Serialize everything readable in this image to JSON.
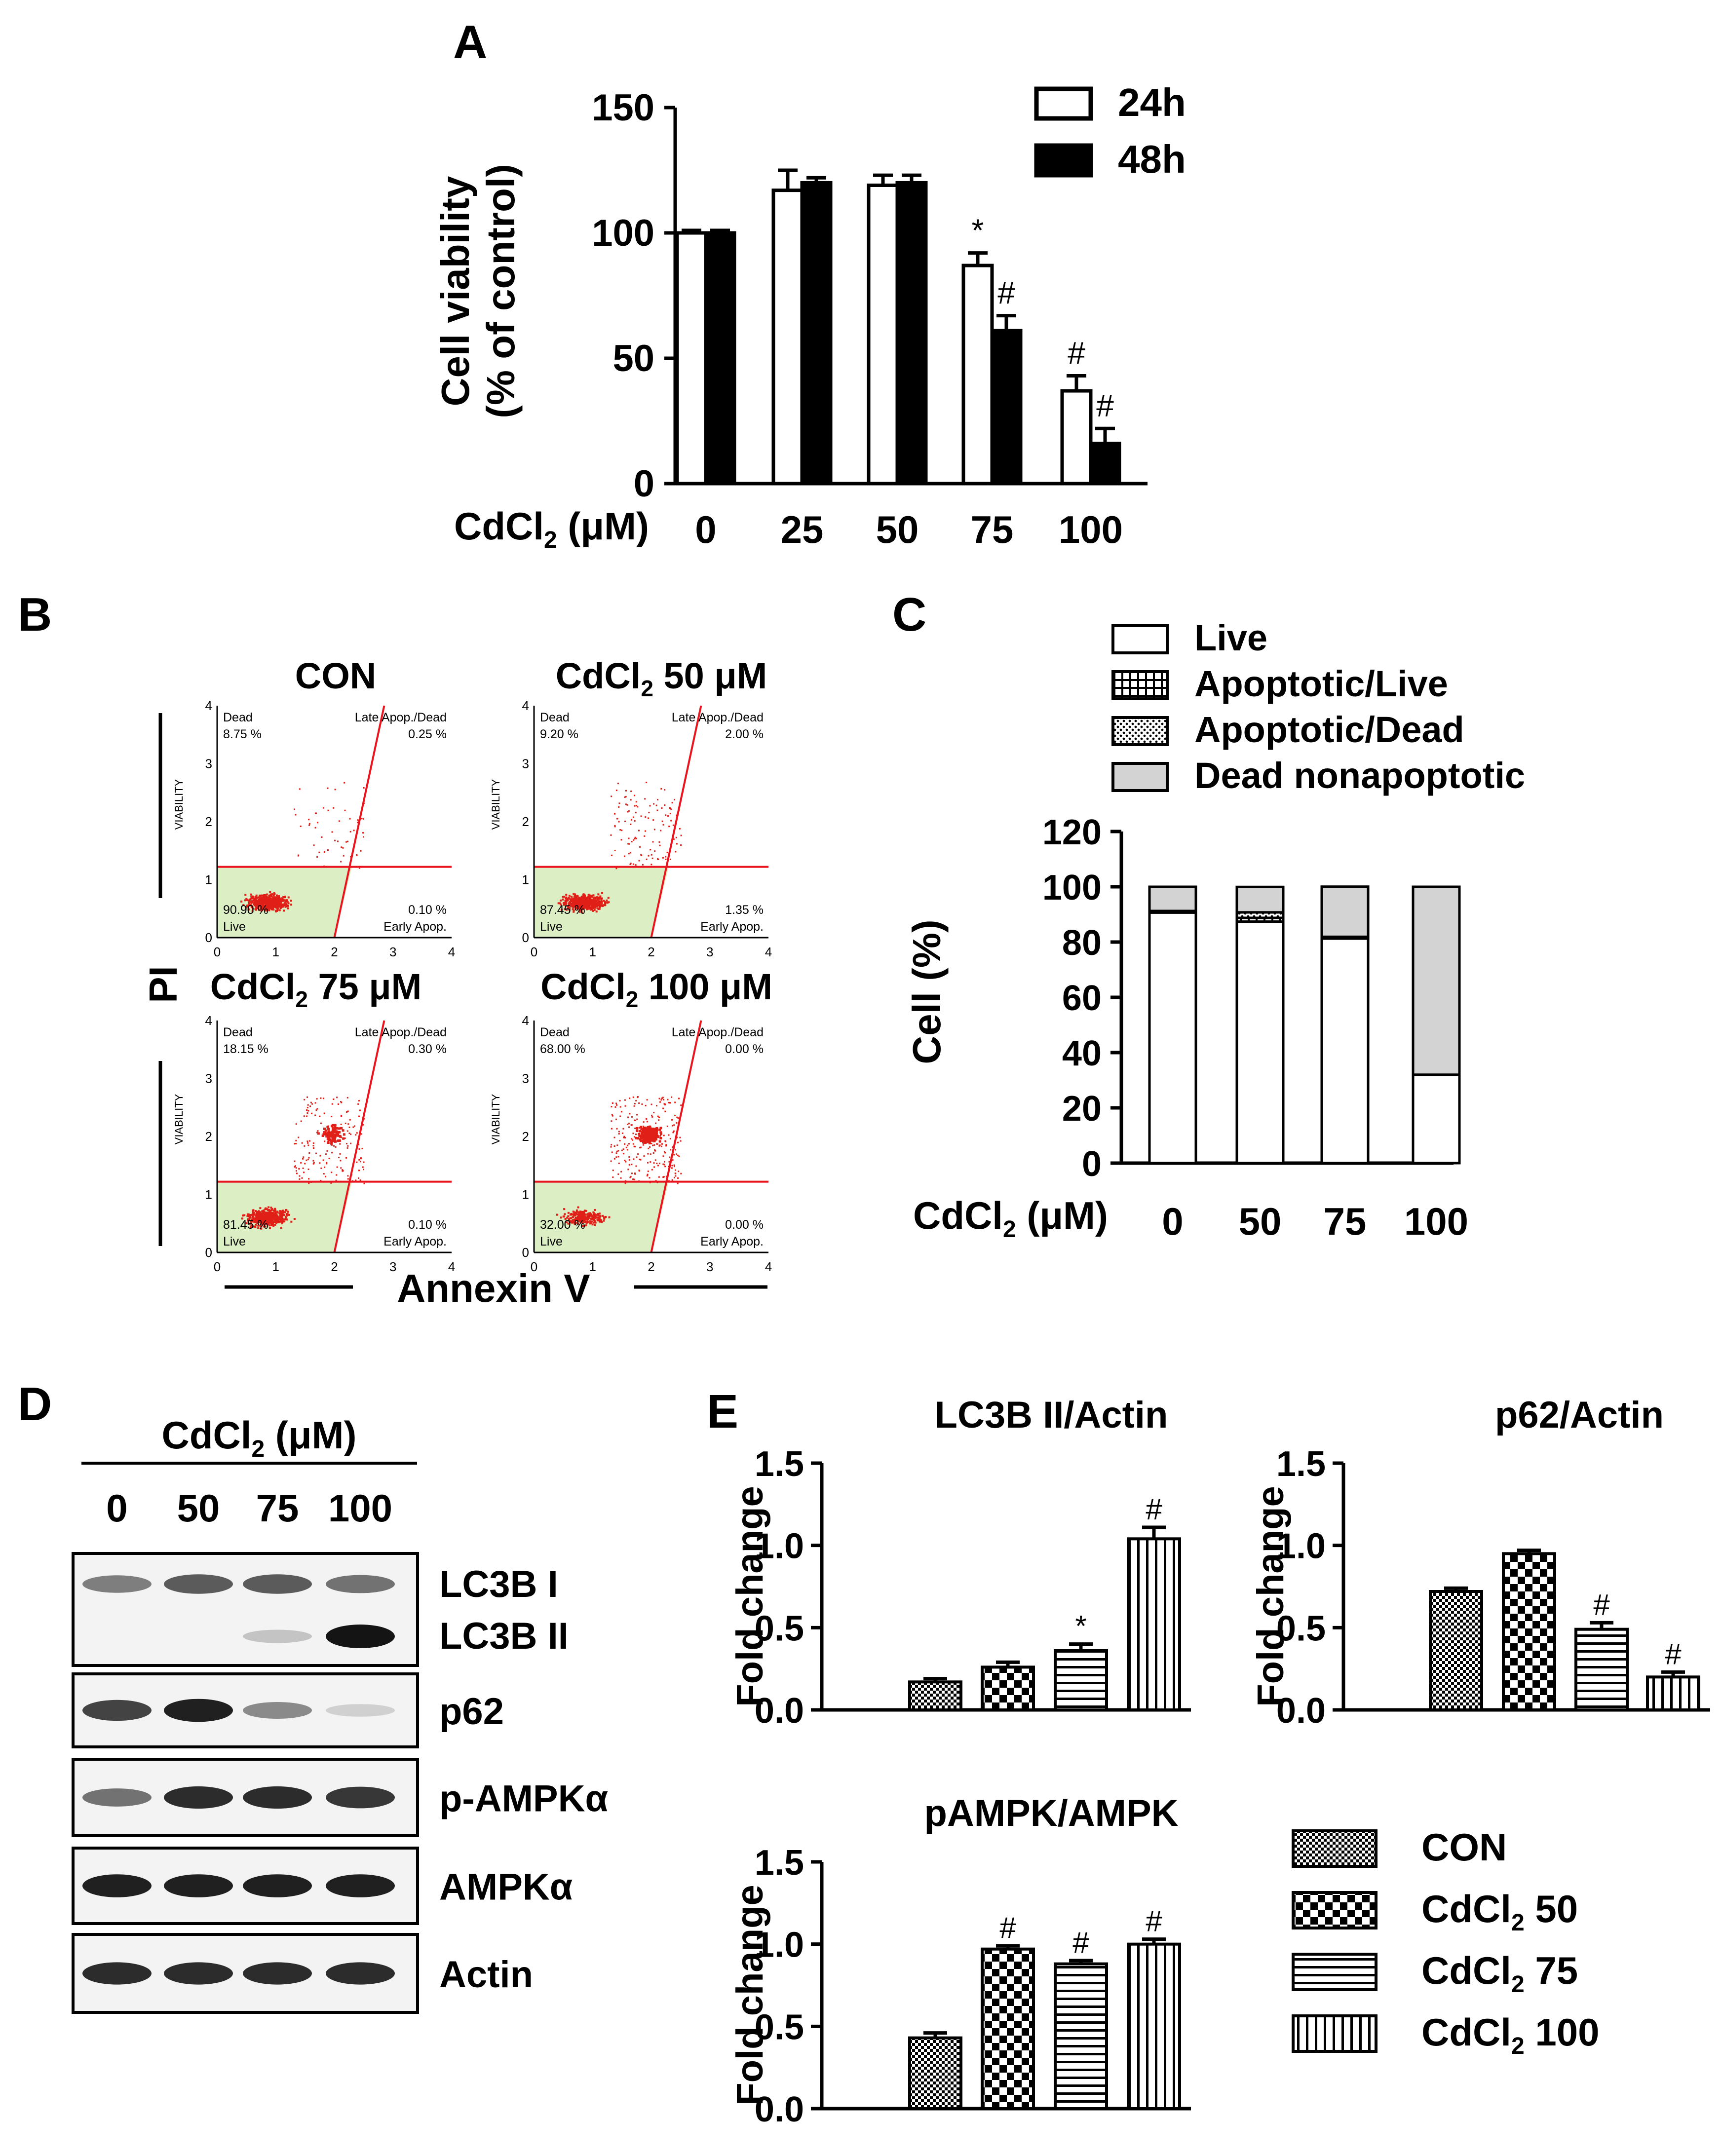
{
  "panel_labels": {
    "a": "A",
    "b": "B",
    "c": "C",
    "d": "D",
    "e": "E"
  },
  "colors": {
    "ink": "#000000",
    "flow_gate": "#e8141e",
    "flow_dot": "#e02018",
    "flow_live_region": "#dcefc4",
    "dead_nonapoptotic": "#d3d3d3"
  },
  "chart_data": [
    {
      "id": "A",
      "type": "bar",
      "title": "",
      "ylabel": "Cell viability\n(% of control)",
      "xlabel": "CdCl2 (μM)",
      "categories": [
        "0",
        "25",
        "50",
        "75",
        "100"
      ],
      "series": [
        {
          "name": "24h",
          "fill": "white",
          "values": [
            100,
            117,
            119,
            87,
            37
          ],
          "errors": [
            1,
            8,
            4,
            5,
            6
          ]
        },
        {
          "name": "48h",
          "fill": "black",
          "values": [
            100,
            120,
            120,
            61,
            16
          ],
          "errors": [
            1,
            2,
            3,
            6,
            6
          ]
        }
      ],
      "annotations": [
        {
          "category": "75",
          "series": "24h",
          "text": "*"
        },
        {
          "category": "75",
          "series": "48h",
          "text": "#"
        },
        {
          "category": "100",
          "series": "24h",
          "text": "#"
        },
        {
          "category": "100",
          "series": "48h",
          "text": "#"
        }
      ],
      "ylim": [
        0,
        150
      ],
      "yticks": [
        "0",
        "50",
        "100",
        "150"
      ],
      "legend": "top-right"
    },
    {
      "id": "C",
      "type": "bar",
      "stacked": true,
      "ylabel": "Cell (%)",
      "xlabel": "CdCl2 (μM)",
      "categories": [
        "0",
        "50",
        "75",
        "100"
      ],
      "series": [
        {
          "name": "Live",
          "values": [
            90.9,
            87.4,
            81.5,
            32.0
          ]
        },
        {
          "name": "Apoptotic/Live",
          "values": [
            0.1,
            1.35,
            0.1,
            0.0
          ]
        },
        {
          "name": "Apoptotic/Dead",
          "values": [
            0.25,
            2.0,
            0.3,
            0.0
          ]
        },
        {
          "name": "Dead nonapoptotic",
          "values": [
            8.75,
            9.2,
            18.15,
            68.0
          ]
        }
      ],
      "ylim": [
        0,
        120
      ],
      "yticks": [
        "0",
        "20",
        "40",
        "60",
        "80",
        "100",
        "120"
      ],
      "legend": "top"
    },
    {
      "id": "E1",
      "type": "bar",
      "title": "LC3B II/Actin",
      "ylabel": "Fold change",
      "categories": [
        "CON",
        "CdCl2 50",
        "CdCl2 75",
        "CdCl2 100"
      ],
      "values": [
        0.17,
        0.26,
        0.36,
        1.04
      ],
      "errors": [
        0.02,
        0.03,
        0.04,
        0.07
      ],
      "annotations": [
        "",
        "",
        "*",
        "#"
      ],
      "ylim": [
        0,
        1.5
      ],
      "yticks": [
        "0.0",
        "0.5",
        "1.0",
        "1.5"
      ]
    },
    {
      "id": "E2",
      "type": "bar",
      "title": "p62/Actin",
      "ylabel": "Fold change",
      "categories": [
        "CON",
        "CdCl2 50",
        "CdCl2 75",
        "CdCl2 100"
      ],
      "values": [
        0.72,
        0.95,
        0.49,
        0.2
      ],
      "errors": [
        0.02,
        0.02,
        0.04,
        0.03
      ],
      "annotations": [
        "",
        "",
        "#",
        "#"
      ],
      "ylim": [
        0,
        1.5
      ],
      "yticks": [
        "0.0",
        "0.5",
        "1.0",
        "1.5"
      ]
    },
    {
      "id": "E3",
      "type": "bar",
      "title": "pAMPK/AMPK",
      "ylabel": "Fold change",
      "categories": [
        "CON",
        "CdCl2 50",
        "CdCl2 75",
        "CdCl2 100"
      ],
      "values": [
        0.43,
        0.97,
        0.88,
        1.0
      ],
      "errors": [
        0.03,
        0.02,
        0.02,
        0.03
      ],
      "annotations": [
        "",
        "#",
        "#",
        "#"
      ],
      "ylim": [
        0,
        1.5
      ],
      "yticks": [
        "0.0",
        "0.5",
        "1.0",
        "1.5"
      ]
    }
  ],
  "flow": {
    "y_axis_label": "PI",
    "x_axis_label": "Annexin V",
    "inner_y_label": "VIABILITY",
    "axis_ticks": [
      "0",
      "1",
      "2",
      "3",
      "4"
    ],
    "quadrant_names": {
      "dead": "Dead",
      "late": "Late Apop./Dead",
      "live": "Live",
      "early": "Early Apop."
    },
    "plots": [
      {
        "title": "CON",
        "dead": "8.75 %",
        "late": "0.25 %",
        "live": "90.90 %",
        "early": "0.10 %",
        "points_live": 600,
        "points_upper": 55,
        "cluster_points": 0
      },
      {
        "title": "CdCl2 50 μM",
        "dead": "9.20 %",
        "late": "2.00 %",
        "live": "87.45 %",
        "early": "1.35 %",
        "points_live": 560,
        "points_upper": 120,
        "cluster_points": 0
      },
      {
        "title": "CdCl2 75 μM",
        "dead": "18.15 %",
        "late": "0.30 %",
        "live": "81.45 %",
        "early": "0.10 %",
        "points_live": 520,
        "points_upper": 170,
        "cluster_points": 90
      },
      {
        "title": "CdCl2 100 μM",
        "dead": "68.00 %",
        "late": "0.00 %",
        "live": "32.00 %",
        "early": "0.00 %",
        "points_live": 230,
        "points_upper": 260,
        "cluster_points": 260
      }
    ]
  },
  "blot": {
    "header": "CdCl2 (μM)",
    "lanes": [
      "0",
      "50",
      "75",
      "100"
    ],
    "rows": [
      {
        "labels": [
          "LC3B I",
          "LC3B II"
        ],
        "bands": [
          [
            0.55,
            0.7,
            0.7,
            0.6
          ],
          [
            0,
            0,
            0.25,
            1.0
          ]
        ]
      },
      {
        "labels": [
          "p62"
        ],
        "bands": [
          [
            0.8,
            0.95,
            0.5,
            0.2
          ]
        ]
      },
      {
        "labels": [
          "p-AMPKα"
        ],
        "bands": [
          [
            0.6,
            0.9,
            0.9,
            0.85
          ]
        ]
      },
      {
        "labels": [
          "AMPKα"
        ],
        "bands": [
          [
            0.95,
            0.95,
            0.95,
            0.95
          ]
        ]
      },
      {
        "labels": [
          "Actin"
        ],
        "bands": [
          [
            0.9,
            0.9,
            0.9,
            0.9
          ]
        ]
      }
    ]
  },
  "legend_e": [
    "CON",
    "CdCl2 50",
    "CdCl2 75",
    "CdCl2 100"
  ]
}
